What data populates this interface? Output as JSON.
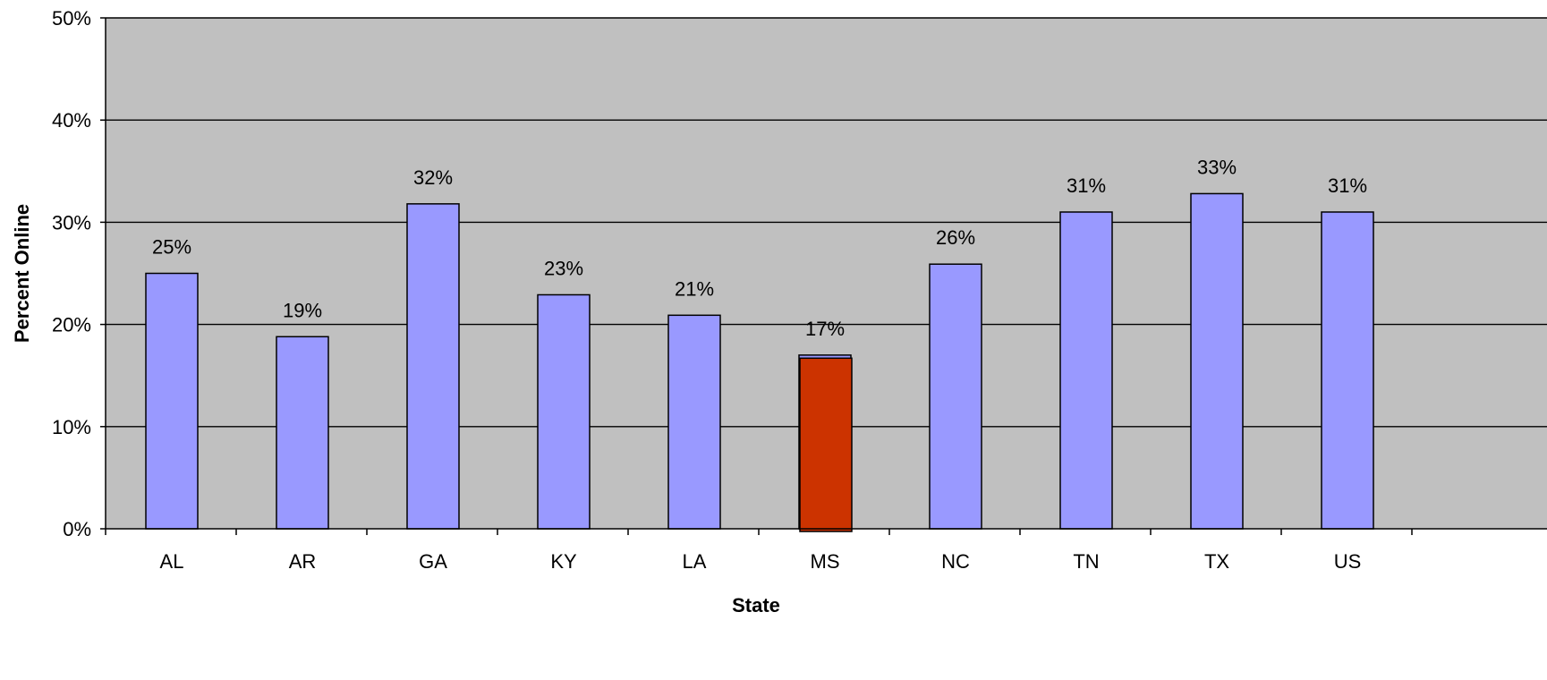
{
  "chart_data": {
    "type": "bar",
    "title": "",
    "xlabel": "State",
    "ylabel": "Percent Online",
    "categories": [
      "AL",
      "AR",
      "GA",
      "KY",
      "LA",
      "MS",
      "NC",
      "TN",
      "TX",
      "US"
    ],
    "values": [
      0.25,
      0.188,
      0.318,
      0.229,
      0.209,
      0.17,
      0.259,
      0.31,
      0.328,
      0.31
    ],
    "data_labels": [
      "25%",
      "19%",
      "32%",
      "23%",
      "21%",
      "17%",
      "26%",
      "31%",
      "33%",
      "31%"
    ],
    "highlight_category": "MS",
    "highlight_value": 0.167,
    "ylim": [
      0,
      0.5
    ],
    "yticks": [
      0,
      0.1,
      0.2,
      0.3,
      0.4,
      0.5
    ],
    "ytick_labels": [
      "0%",
      "10%",
      "20%",
      "30%",
      "40%",
      "50%"
    ],
    "grid": true,
    "legend": "none",
    "colors": {
      "plot_background": "#c0c0c0",
      "bar": "#9999ff",
      "highlight_bar": "#cc3300",
      "bar_border": "#000000",
      "gridline": "#000000"
    }
  }
}
